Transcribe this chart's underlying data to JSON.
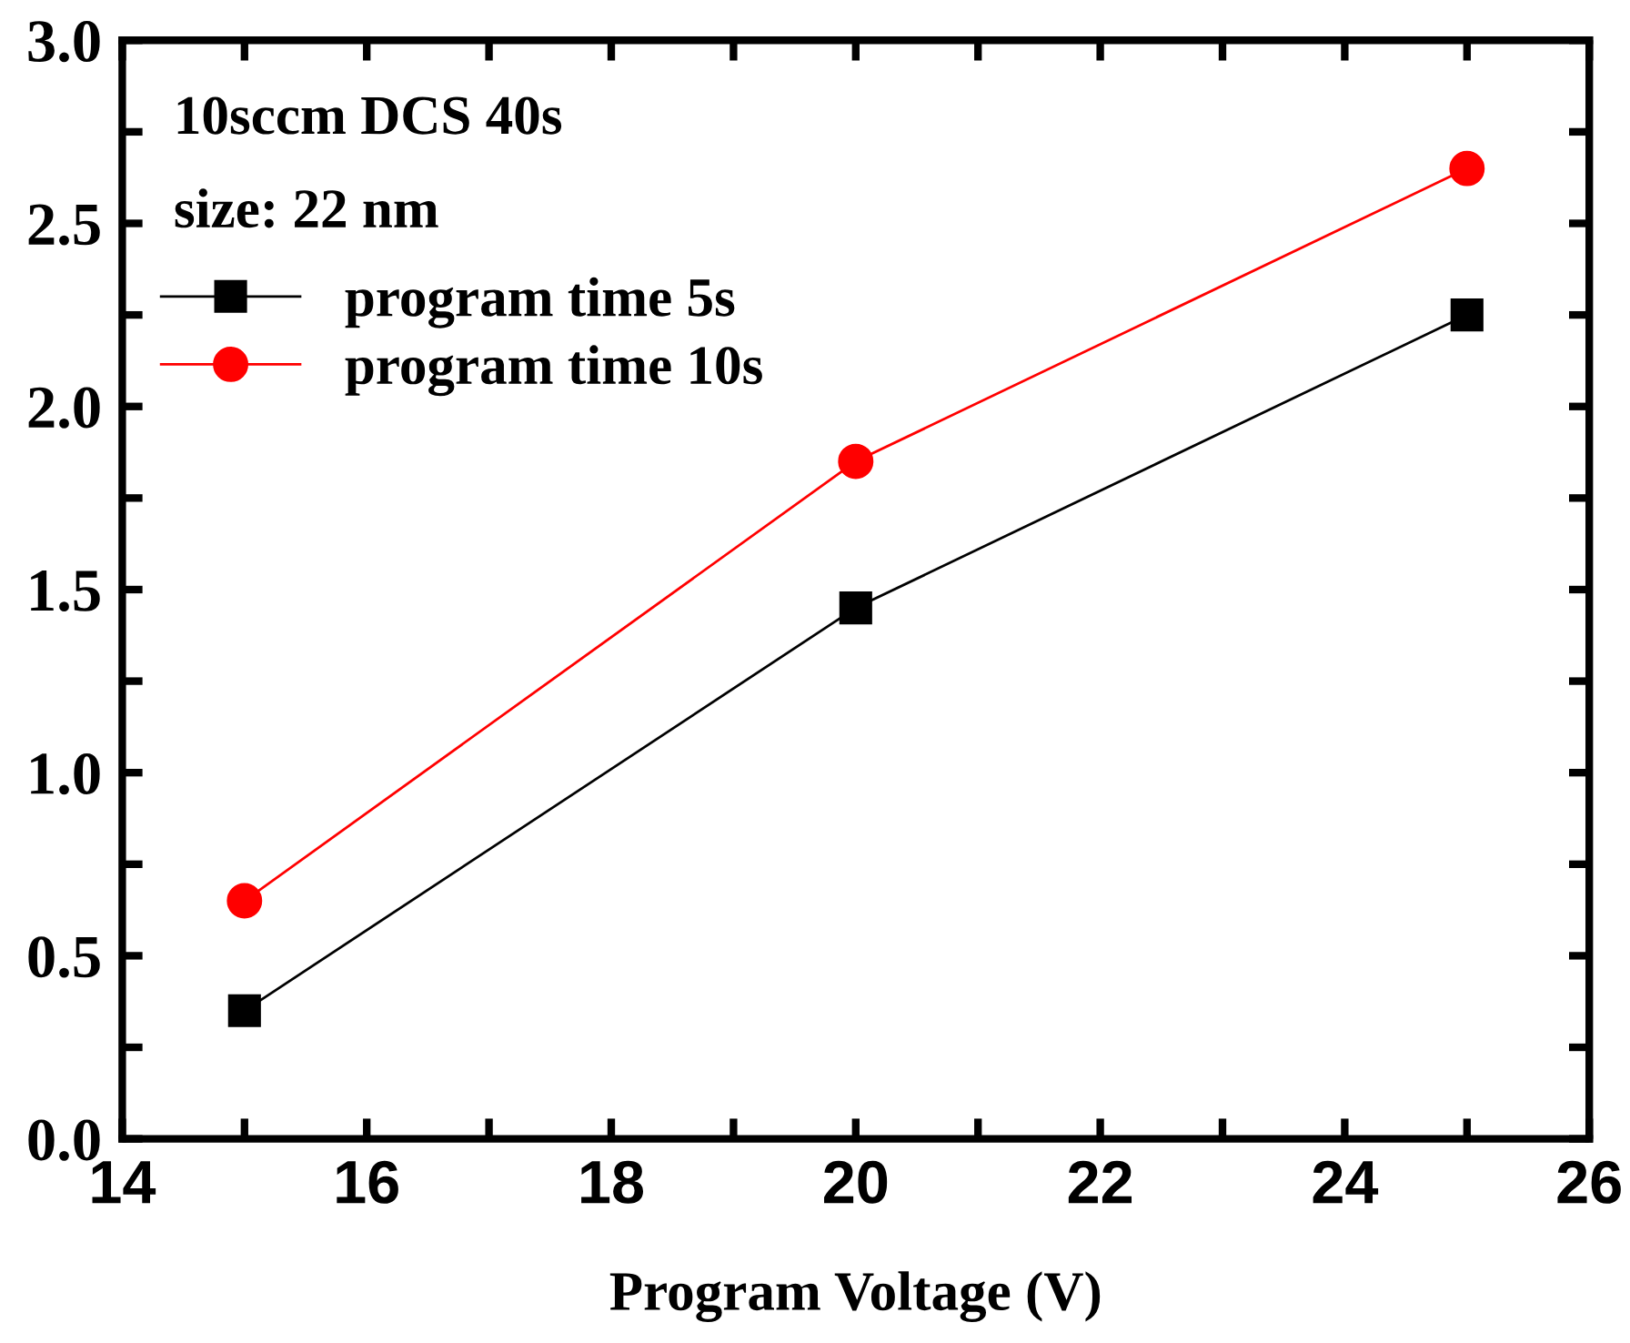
{
  "chart_data": {
    "type": "line",
    "xlabel": "Program Voltage (V)",
    "annotations": [
      "10sccm DCS 40s",
      "size: 22 nm"
    ],
    "x": [
      15,
      20,
      25
    ],
    "series": [
      {
        "name": "program time 5s",
        "color": "#000000",
        "values": [
          0.35,
          1.45,
          2.25
        ],
        "marker": "square"
      },
      {
        "name": "program time 10s",
        "color": "#ff0000",
        "values": [
          0.65,
          1.85,
          2.65
        ],
        "marker": "circle"
      }
    ],
    "xlim": [
      14,
      26
    ],
    "ylim": [
      0,
      3
    ],
    "xticks": [
      14,
      {
        "value": 15,
        "label": null
      },
      16,
      {
        "value": 17,
        "label": null
      },
      18,
      {
        "value": 19,
        "label": null
      },
      20,
      {
        "value": 21,
        "label": null
      },
      22,
      {
        "value": 23,
        "label": null
      },
      24,
      {
        "value": 25,
        "label": null
      },
      26
    ],
    "yticks": [
      {
        "value": 0,
        "label": "0.0"
      },
      {
        "value": 0.25,
        "label": null
      },
      {
        "value": 0.5,
        "label": "0.5"
      },
      {
        "value": 0.75,
        "label": null
      },
      {
        "value": 1,
        "label": "1.0"
      },
      {
        "value": 1.25,
        "label": null
      },
      {
        "value": 1.5,
        "label": "1.5"
      },
      {
        "value": 1.75,
        "label": null
      },
      {
        "value": 2,
        "label": "2.0"
      },
      {
        "value": 2.25,
        "label": null
      },
      {
        "value": 2.5,
        "label": "2.5"
      },
      {
        "value": 2.75,
        "label": null
      },
      {
        "value": 3,
        "label": "3.0"
      }
    ],
    "grid": false,
    "legend": "top left",
    "line_style": "solid"
  }
}
